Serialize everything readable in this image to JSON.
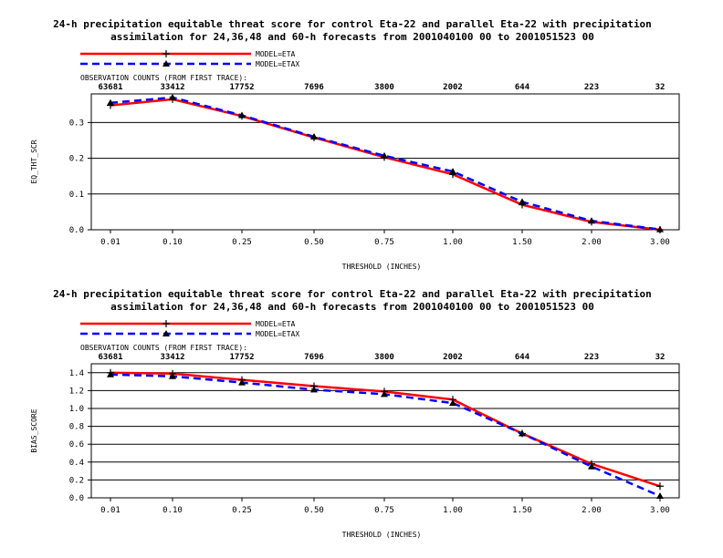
{
  "chart_data": [
    {
      "type": "line",
      "title_line1": "24-h precipitation equitable threat score for control Eta-22 and parallel Eta-22 with precipitation",
      "title_line2": "assimilation for 24,36,48 and 60-h forecasts from 2001040100 00 to 2001051523 00",
      "legend": [
        "MODEL=ETA",
        "MODEL=ETAX"
      ],
      "counts_label": "OBSERVATION COUNTS (FROM FIRST TRACE):",
      "counts": [
        "63681",
        "33412",
        "17752",
        "7696",
        "3800",
        "2002",
        "644",
        "223",
        "32"
      ],
      "categories": [
        "0.01",
        "0.10",
        "0.25",
        "0.50",
        "0.75",
        "1.00",
        "1.50",
        "2.00",
        "3.00"
      ],
      "xlabel": "THRESHOLD (INCHES)",
      "ylabel": "EQ_THT_SCR",
      "ylim": [
        0,
        0.38
      ],
      "yticks": [
        "0.0",
        "0.1",
        "0.2",
        "0.3"
      ],
      "yticks_values": [
        0,
        0.1,
        0.2,
        0.3
      ],
      "grid": true,
      "legend_position": "top-left",
      "series": [
        {
          "name": "MODEL=ETA",
          "color": "#ff0000",
          "dash": "solid",
          "marker": "plus",
          "values": [
            0.348,
            0.365,
            0.318,
            0.258,
            0.203,
            0.155,
            0.07,
            0.022,
            0.0
          ]
        },
        {
          "name": "MODEL=ETAX",
          "color": "#0000ff",
          "dash": "dashed",
          "marker": "triangle",
          "values": [
            0.355,
            0.37,
            0.32,
            0.26,
            0.207,
            0.163,
            0.078,
            0.025,
            0.001
          ]
        }
      ]
    },
    {
      "type": "line",
      "title_line1": "24-h precipitation equitable threat score for control Eta-22 and parallel Eta-22 with precipitation",
      "title_line2": "assimilation for 24,36,48 and 60-h forecasts from 2001040100 00 to 2001051523 00",
      "legend": [
        "MODEL=ETA",
        "MODEL=ETAX"
      ],
      "counts_label": "OBSERVATION COUNTS (FROM FIRST TRACE):",
      "counts": [
        "63681",
        "33412",
        "17752",
        "7696",
        "3800",
        "2002",
        "644",
        "223",
        "32"
      ],
      "categories": [
        "0.01",
        "0.10",
        "0.25",
        "0.50",
        "0.75",
        "1.00",
        "1.50",
        "2.00",
        "3.00"
      ],
      "xlabel": "THRESHOLD (INCHES)",
      "ylabel": "BIAS_SCORE",
      "ylim": [
        0,
        1.5
      ],
      "yticks": [
        "0.0",
        "0.2",
        "0.4",
        "0.6",
        "0.8",
        "1.0",
        "1.2",
        "1.4"
      ],
      "yticks_values": [
        0,
        0.2,
        0.4,
        0.6,
        0.8,
        1.0,
        1.2,
        1.4
      ],
      "grid": true,
      "legend_position": "top-left",
      "series": [
        {
          "name": "MODEL=ETA",
          "color": "#ff0000",
          "dash": "solid",
          "marker": "plus",
          "values": [
            1.4,
            1.39,
            1.32,
            1.25,
            1.19,
            1.1,
            0.72,
            0.38,
            0.13
          ]
        },
        {
          "name": "MODEL=ETAX",
          "color": "#0000ff",
          "dash": "dashed",
          "marker": "triangle",
          "values": [
            1.38,
            1.36,
            1.29,
            1.21,
            1.16,
            1.06,
            0.72,
            0.35,
            0.02
          ]
        }
      ]
    }
  ]
}
